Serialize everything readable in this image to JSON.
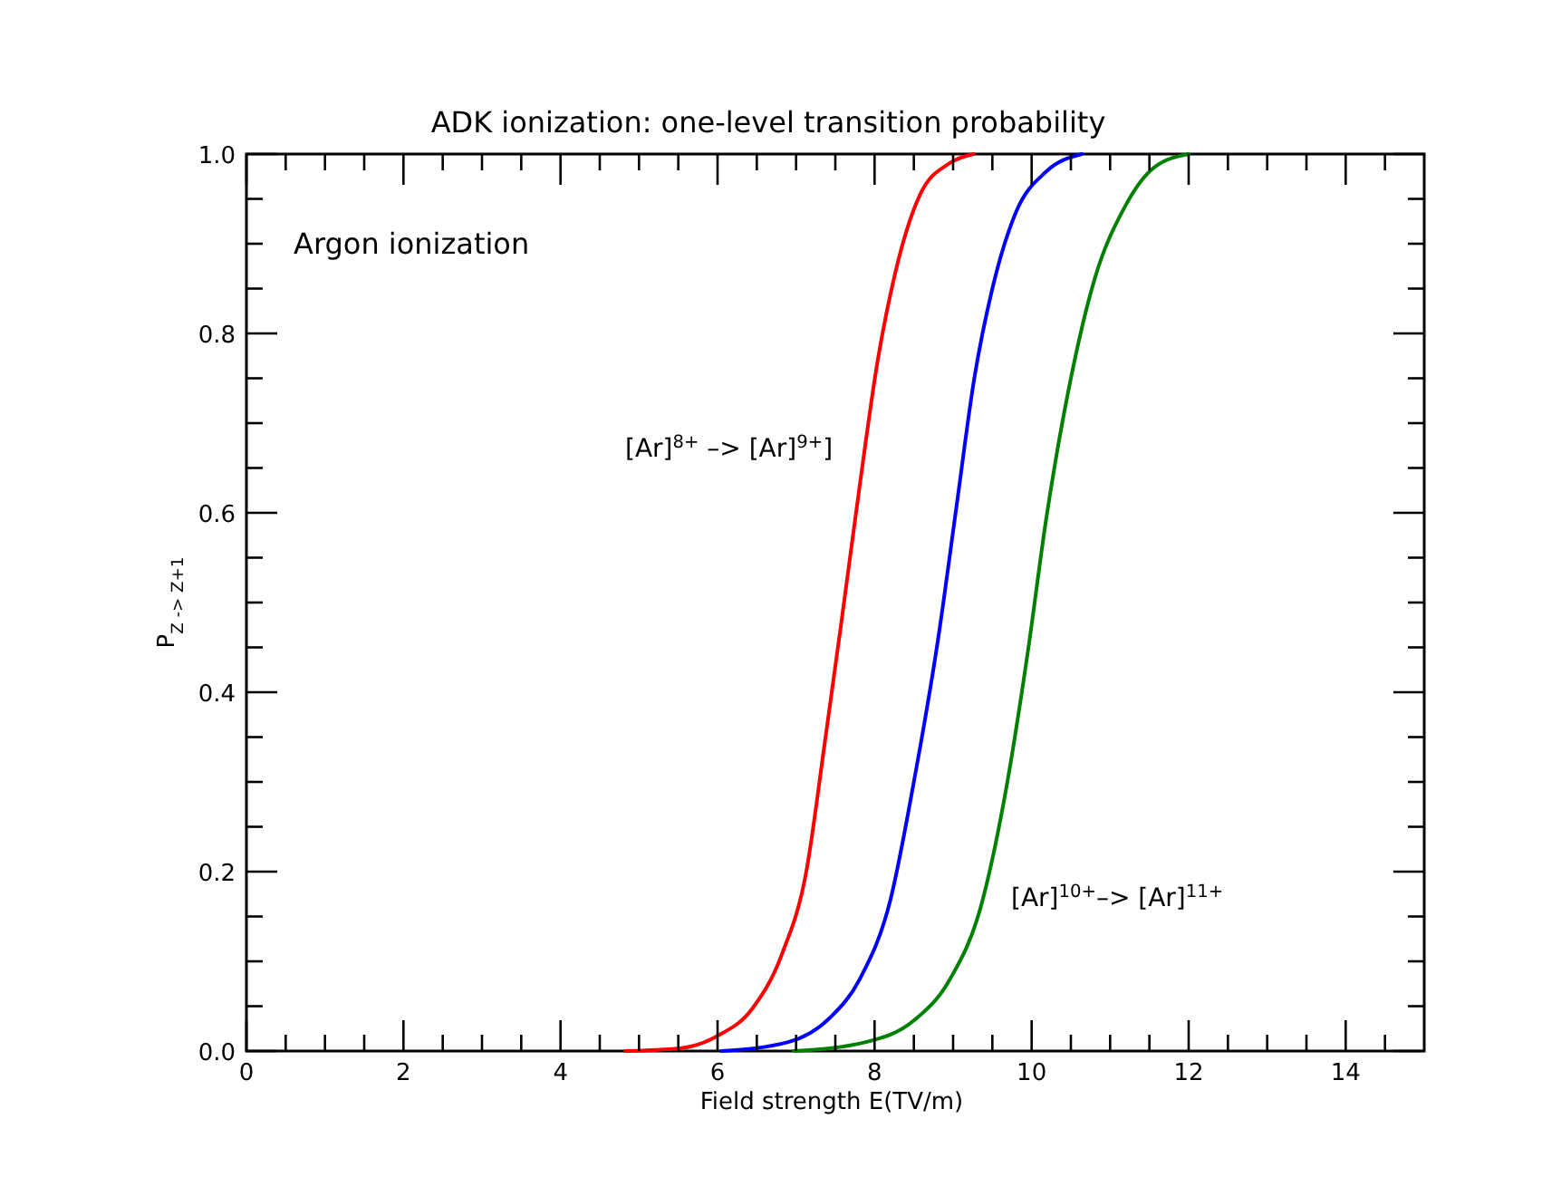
{
  "chart_data": {
    "type": "line",
    "title": "ADK ionization: one-level transition probability",
    "xlabel": "Field strength  E(TV/m)",
    "ylabel": "P$_{Z -> Z+1}$",
    "annotations": [
      "Argon ionization",
      "[Ar]$^{8+}$ –> [Ar]$^{9+}$]",
      "[Ar]$^{10+}$–> [Ar]$^{11+}$"
    ],
    "xlim": [
      0,
      15
    ],
    "ylim": [
      0,
      1
    ],
    "xticks": [
      0,
      {
        "value": 0.5,
        "label": null
      },
      {
        "value": 1,
        "label": null
      },
      {
        "value": 1.5,
        "label": null
      },
      2,
      {
        "value": 2.5,
        "label": null
      },
      {
        "value": 3,
        "label": null
      },
      {
        "value": 3.5,
        "label": null
      },
      4,
      {
        "value": 4.5,
        "label": null
      },
      {
        "value": 5,
        "label": null
      },
      {
        "value": 5.5,
        "label": null
      },
      6,
      {
        "value": 6.5,
        "label": null
      },
      {
        "value": 7,
        "label": null
      },
      {
        "value": 7.5,
        "label": null
      },
      8,
      {
        "value": 8.5,
        "label": null
      },
      {
        "value": 9,
        "label": null
      },
      {
        "value": 9.5,
        "label": null
      },
      10,
      {
        "value": 10.5,
        "label": null
      },
      {
        "value": 11,
        "label": null
      },
      {
        "value": 11.5,
        "label": null
      },
      12,
      {
        "value": 12.5,
        "label": null
      },
      {
        "value": 13,
        "label": null
      },
      {
        "value": 13.5,
        "label": null
      },
      14,
      {
        "value": 14.5,
        "label": null
      }
    ],
    "yticks": [
      {
        "value": 0,
        "label": "0.0"
      },
      {
        "value": 0.05,
        "label": null
      },
      {
        "value": 0.1,
        "label": null
      },
      {
        "value": 0.15,
        "label": null
      },
      0.2,
      {
        "value": 0.25,
        "label": null
      },
      {
        "value": 0.3,
        "label": null
      },
      {
        "value": 0.35,
        "label": null
      },
      0.4,
      {
        "value": 0.45,
        "label": null
      },
      {
        "value": 0.5,
        "label": null
      },
      {
        "value": 0.55,
        "label": null
      },
      0.6,
      {
        "value": 0.65,
        "label": null
      },
      {
        "value": 0.7,
        "label": null
      },
      {
        "value": 0.75,
        "label": null
      },
      0.8,
      {
        "value": 0.85,
        "label": null
      },
      {
        "value": 0.9,
        "label": null
      },
      {
        "value": 0.95,
        "label": null
      },
      {
        "value": 1,
        "label": "1.0"
      }
    ],
    "grid": false,
    "marker": "none",
    "line_style": "solid",
    "series": [
      {
        "color": "#ff0000",
        "x": [
          4.83,
          5.52,
          6.0,
          6.44,
          6.82,
          7.13,
          7.36,
          7.58,
          7.81,
          8.04,
          8.27,
          8.58,
          8.96,
          9.26
        ],
        "values": [
          0,
          0.003,
          0.017,
          0.047,
          0.108,
          0.2,
          0.34,
          0.48,
          0.63,
          0.77,
          0.87,
          0.955,
          0.99,
          1.0
        ]
      },
      {
        "color": "#0000ff",
        "x": [
          6.05,
          6.9,
          7.43,
          7.81,
          8.2,
          8.5,
          8.81,
          9.04,
          9.27,
          9.5,
          9.8,
          10.18,
          10.64
        ],
        "values": [
          0,
          0.01,
          0.037,
          0.08,
          0.168,
          0.3,
          0.46,
          0.605,
          0.75,
          0.85,
          0.935,
          0.98,
          1.0
        ]
      },
      {
        "color": "#008000",
        "x": [
          6.97,
          7.89,
          8.5,
          8.96,
          9.35,
          9.65,
          9.96,
          10.18,
          10.5,
          10.8,
          11.18,
          11.56,
          12.0
        ],
        "values": [
          0,
          0.01,
          0.034,
          0.08,
          0.16,
          0.28,
          0.45,
          0.59,
          0.75,
          0.86,
          0.94,
          0.985,
          1.0
        ]
      }
    ]
  }
}
